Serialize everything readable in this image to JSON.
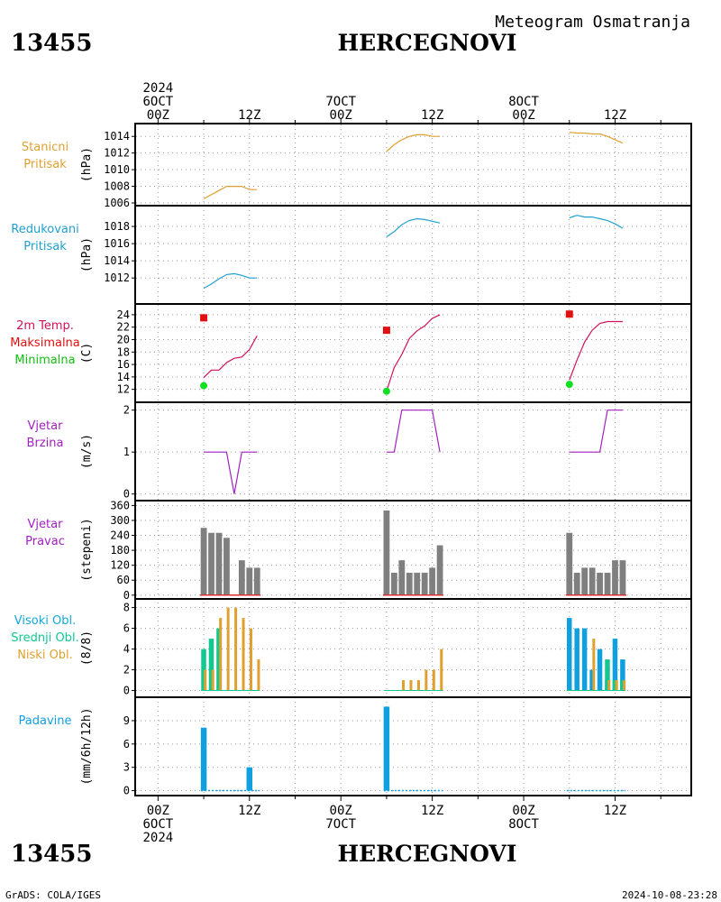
{
  "header": {
    "station_id": "13455",
    "station_name": "HERCEGNOVI",
    "subtitle": "Meteogram Osmatranja"
  },
  "footer": {
    "station_id": "13455",
    "station_name": "HERCEGNOVI",
    "credit": "GrADS: COLA/IGES",
    "timestamp": "2024-10-08-23:28"
  },
  "time_axis": {
    "top_labels": [
      {
        "lines": [
          "2024",
          "6OCT",
          "00Z"
        ],
        "hour": 0
      },
      {
        "lines": [
          "12Z"
        ],
        "hour": 12
      },
      {
        "lines": [
          "7OCT",
          "00Z"
        ],
        "hour": 24
      },
      {
        "lines": [
          "12Z"
        ],
        "hour": 36
      },
      {
        "lines": [
          "8OCT",
          "00Z"
        ],
        "hour": 48
      },
      {
        "lines": [
          "12Z"
        ],
        "hour": 60
      }
    ],
    "bottom_labels": [
      {
        "lines": [
          "00Z",
          "6OCT",
          "2024"
        ],
        "hour": 0
      },
      {
        "lines": [
          "12Z"
        ],
        "hour": 12
      },
      {
        "lines": [
          "00Z",
          "7OCT"
        ],
        "hour": 24
      },
      {
        "lines": [
          "12Z"
        ],
        "hour": 36
      },
      {
        "lines": [
          "00Z",
          "8OCT"
        ],
        "hour": 48
      },
      {
        "lines": [
          "12Z"
        ],
        "hour": 60
      }
    ],
    "range_hours": [
      -3,
      70
    ]
  },
  "panels": {
    "stanicni": {
      "labels": [
        "Stanicni",
        "Pritisak"
      ],
      "label_colors": [
        "#e0a030",
        "#e0a030"
      ],
      "unit": "(hPa)"
    },
    "redukovani": {
      "labels": [
        "Redukovani",
        "Pritisak"
      ],
      "label_colors": [
        "#20a0d0",
        "#20a0d0"
      ],
      "unit": "(hPa)"
    },
    "temp": {
      "labels": [
        "2m Temp.",
        "Maksimalna",
        "Minimalna"
      ],
      "label_colors": [
        "#d0105a",
        "#e01010",
        "#10c010"
      ],
      "unit": "(C)"
    },
    "brzina": {
      "labels": [
        "Vjetar",
        "Brzina"
      ],
      "label_colors": [
        "#a020c0",
        "#a020c0"
      ],
      "unit": "(m/s)"
    },
    "pravac": {
      "labels": [
        "Vjetar",
        "Pravac"
      ],
      "label_colors": [
        "#a020c0",
        "#a020c0"
      ],
      "unit": "(stepeni)"
    },
    "oblaci": {
      "labels": [
        "Visoki Obl.",
        "Srednji Obl.",
        "Niski Obl."
      ],
      "label_colors": [
        "#10a8d8",
        "#10c890",
        "#e0a030"
      ],
      "unit": "(8/8)"
    },
    "padavine": {
      "labels": [
        "Padavine"
      ],
      "label_colors": [
        "#10a0e0"
      ],
      "unit": "(mm/6h/12h)"
    }
  },
  "chart_data": [
    {
      "id": "stanicni",
      "type": "line",
      "ylabel": "(hPa)",
      "ylim": [
        1006,
        1015
      ],
      "yticks": [
        1006,
        1008,
        1010,
        1012,
        1014
      ],
      "color": "#e0a030",
      "grid": true,
      "segments": [
        {
          "x": [
            6,
            7,
            8,
            9,
            10,
            11,
            12,
            13
          ],
          "y": [
            1006.5,
            1007.0,
            1007.5,
            1008.0,
            1008.0,
            1008.0,
            1007.6,
            1007.6
          ]
        },
        {
          "x": [
            30,
            31,
            32,
            33,
            34,
            35,
            36,
            37
          ],
          "y": [
            1012.2,
            1013.0,
            1013.6,
            1014.0,
            1014.2,
            1014.2,
            1014.0,
            1014.0
          ]
        },
        {
          "x": [
            54,
            55,
            56,
            57,
            58,
            59,
            60,
            61
          ],
          "y": [
            1014.5,
            1014.4,
            1014.4,
            1014.3,
            1014.3,
            1014.0,
            1013.6,
            1013.2
          ]
        }
      ]
    },
    {
      "id": "redukovani",
      "type": "line",
      "ylabel": "(hPa)",
      "ylim": [
        1009.5,
        1020
      ],
      "yticks": [
        1012,
        1014,
        1016,
        1018
      ],
      "color": "#20a0d0",
      "grid": true,
      "segments": [
        {
          "x": [
            6,
            7,
            8,
            9,
            10,
            11,
            12,
            13
          ],
          "y": [
            1010.8,
            1011.3,
            1011.9,
            1012.4,
            1012.5,
            1012.3,
            1012.0,
            1012.0
          ]
        },
        {
          "x": [
            30,
            31,
            32,
            33,
            34,
            35,
            36,
            37
          ],
          "y": [
            1016.8,
            1017.4,
            1018.2,
            1018.7,
            1018.9,
            1018.8,
            1018.6,
            1018.4
          ]
        },
        {
          "x": [
            54,
            55,
            56,
            57,
            58,
            59,
            60,
            61
          ],
          "y": [
            1019.0,
            1019.3,
            1019.1,
            1019.1,
            1018.9,
            1018.7,
            1018.3,
            1017.8
          ]
        }
      ]
    },
    {
      "id": "temp",
      "type": "line",
      "ylabel": "(C)",
      "ylim": [
        10.5,
        25
      ],
      "yticks": [
        12,
        14,
        16,
        18,
        20,
        22,
        24
      ],
      "color": "#d0105a",
      "grid": true,
      "segments": [
        {
          "x": [
            6,
            7,
            8,
            9,
            10,
            11,
            12,
            13
          ],
          "y": [
            13.9,
            15.1,
            15.1,
            16.3,
            17.0,
            17.2,
            18.4,
            20.6
          ]
        },
        {
          "x": [
            30,
            31,
            32,
            33,
            34,
            35,
            36,
            37
          ],
          "y": [
            11.7,
            15.5,
            17.6,
            20.2,
            21.4,
            22.2,
            23.4,
            24.0
          ]
        },
        {
          "x": [
            54,
            55,
            56,
            57,
            58,
            59,
            60,
            61
          ],
          "y": [
            13.5,
            16.7,
            19.6,
            21.5,
            22.6,
            22.9,
            22.9,
            22.9
          ]
        }
      ],
      "max_points": [
        {
          "x": 6,
          "y": 23.5
        },
        {
          "x": 30,
          "y": 21.5
        },
        {
          "x": 54,
          "y": 24.1
        }
      ],
      "min_points": [
        {
          "x": 6,
          "y": 12.6
        },
        {
          "x": 30,
          "y": 11.7
        },
        {
          "x": 54,
          "y": 12.8
        }
      ],
      "max_color": "#e01010",
      "min_color": "#10e020"
    },
    {
      "id": "brzina",
      "type": "line",
      "ylabel": "(m/s)",
      "ylim": [
        -0.05,
        2.1
      ],
      "yticks": [
        0,
        1,
        2
      ],
      "color": "#a020c0",
      "grid": true,
      "segments": [
        {
          "x": [
            6,
            7,
            8,
            9,
            10,
            11,
            12,
            13
          ],
          "y": [
            1,
            1,
            1,
            1,
            0,
            1,
            1,
            1
          ]
        },
        {
          "x": [
            30,
            31,
            32,
            33,
            34,
            35,
            36,
            37
          ],
          "y": [
            1,
            1,
            2,
            2,
            2,
            2,
            2,
            1
          ]
        },
        {
          "x": [
            54,
            55,
            56,
            57,
            58,
            59,
            60,
            61
          ],
          "y": [
            1,
            1,
            1,
            1,
            1,
            2,
            2,
            2
          ]
        }
      ]
    },
    {
      "id": "pravac",
      "type": "bar",
      "ylabel": "(stepeni)",
      "ylim": [
        -8,
        365
      ],
      "yticks": [
        0,
        60,
        120,
        180,
        240,
        300,
        360
      ],
      "color": "#7f7f7f",
      "baseline_color": "#d83030",
      "grid": true,
      "x": [
        6,
        7,
        8,
        9,
        10,
        11,
        12,
        13,
        30,
        31,
        32,
        33,
        34,
        35,
        36,
        37,
        54,
        55,
        56,
        57,
        58,
        59,
        60,
        61
      ],
      "values": [
        270,
        250,
        250,
        230,
        0,
        140,
        110,
        110,
        340,
        90,
        140,
        90,
        90,
        90,
        110,
        200,
        250,
        90,
        110,
        110,
        90,
        90,
        140,
        140
      ]
    },
    {
      "id": "oblaci",
      "type": "bar",
      "ylabel": "(8/8)",
      "ylim": [
        -0.3,
        8.4
      ],
      "yticks": [
        0,
        2,
        4,
        6,
        8
      ],
      "grid": true,
      "x": [
        6,
        7,
        8,
        9,
        10,
        11,
        12,
        13,
        30,
        31,
        32,
        33,
        34,
        35,
        36,
        37,
        54,
        55,
        56,
        57,
        58,
        59,
        60,
        61
      ],
      "series": [
        {
          "name": "Visoki Obl.",
          "color": "#10a0e0",
          "values": [
            0,
            0,
            0,
            0,
            0,
            0,
            0,
            0,
            0,
            0,
            0,
            0,
            0,
            0,
            0,
            0,
            7,
            6,
            6,
            2,
            4,
            1,
            5,
            3
          ]
        },
        {
          "name": "Srednji Obl.",
          "color": "#10c890",
          "values": [
            4,
            5,
            6,
            0,
            0,
            0,
            0,
            0,
            0,
            0,
            0,
            0,
            0,
            0,
            0,
            0,
            0,
            0,
            0,
            0,
            0,
            3,
            1,
            1
          ]
        },
        {
          "name": "Niski Obl.",
          "color": "#e0a030",
          "values": [
            2,
            2,
            7,
            8,
            8,
            7,
            6,
            3,
            0,
            0,
            1,
            1,
            1,
            2,
            2,
            4,
            0,
            0,
            0,
            5,
            0,
            1,
            1,
            1
          ]
        }
      ]
    },
    {
      "id": "padavine",
      "type": "bar",
      "ylabel": "(mm/6h/12h)",
      "ylim": [
        -0.4,
        11.2
      ],
      "yticks": [
        0,
        3,
        6,
        9
      ],
      "color": "#10a0e0",
      "grid": true,
      "x": [
        6,
        12,
        30
      ],
      "values": [
        8.1,
        3.0,
        10.8
      ]
    }
  ]
}
